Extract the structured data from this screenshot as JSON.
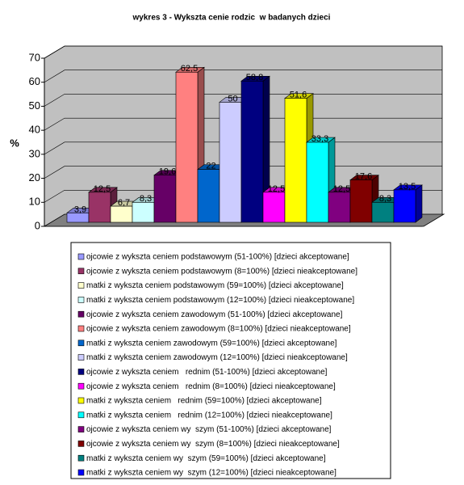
{
  "chart_data": {
    "type": "bar3d",
    "title": "wykres 3 - Wykszta cenie rodzic  w badanych dzieci",
    "y_label": "%",
    "ylim": [
      0,
      70
    ],
    "yticks": [
      0,
      10,
      20,
      30,
      40,
      50,
      60,
      70
    ],
    "grid": true,
    "series": [
      {
        "name": "ojcowie z wykszta ceniem podstawowym (51-100%) [dzieci akceptowane]",
        "color": "#9999ff",
        "values": [
          3.9
        ],
        "value_labels": [
          "3,9"
        ]
      },
      {
        "name": "ojcowie z wykszta ceniem podstawowym (8=100%) [dzieci nieakceptowane]",
        "color": "#993366",
        "values": [
          12.5
        ],
        "value_labels": [
          "12,5"
        ]
      },
      {
        "name": "matki z wykszta ceniem podstawowym (59=100%) [dzieci akceptowane]",
        "color": "#ffffcc",
        "values": [
          6.7
        ],
        "value_labels": [
          "6,7"
        ]
      },
      {
        "name": "matki z wykszta ceniem podstawowym (12=100%) [dzieci nieakceptowane]",
        "color": "#ccffff",
        "values": [
          8.3
        ],
        "value_labels": [
          "8,3"
        ]
      },
      {
        "name": "ojcowie z wykszta ceniem zawodowym (51-100%) [dzieci akceptowane]",
        "color": "#660066",
        "values": [
          19.6
        ],
        "value_labels": [
          "19,6"
        ]
      },
      {
        "name": "ojcowie z wykszta ceniem zawodowym (8=100%) [dzieci nieakceptowane]",
        "color": "#ff8080",
        "values": [
          62.5
        ],
        "value_labels": [
          "62,5"
        ]
      },
      {
        "name": "matki z wykszta ceniem zawodowym (59=100%) [dzieci akceptowane]",
        "color": "#0066cc",
        "values": [
          22
        ]
      },
      {
        "name": "matki z wykszta ceniem zawodowym (12=100%) [dzieci nieakceptowane]",
        "color": "#ccccff",
        "values": [
          50
        ]
      },
      {
        "name": "ojcowie z wykszta ceniem   rednim (51-100%) [dzieci akceptowane]",
        "color": "#000080",
        "values": [
          58.8
        ],
        "value_labels": [
          "58,8"
        ]
      },
      {
        "name": "ojcowie z wykszta ceniem   rednim (8=100%) [dzieci nieakceptowane]",
        "color": "#ff00ff",
        "values": [
          12.5
        ],
        "value_labels": [
          "12,5"
        ]
      },
      {
        "name": "matki z wykszta ceniem   rednim (59=100%) [dzieci akceptowane]",
        "color": "#ffff00",
        "values": [
          51.6
        ],
        "value_labels": [
          "51,6"
        ]
      },
      {
        "name": "matki z wykszta ceniem   rednim (12=100%) [dzieci nieakceptowane]",
        "color": "#00ffff",
        "values": [
          33.3
        ],
        "value_labels": [
          "33,3"
        ]
      },
      {
        "name": "ojcowie z wykszta ceniem wy  szym (51-100%) [dzieci akceptowane]",
        "color": "#800080",
        "values": [
          12.5
        ],
        "value_labels": [
          "12,5"
        ]
      },
      {
        "name": "ojcowie z wykszta ceniem wy  szym (8=100%) [dzieci nieakceptowane]",
        "color": "#800000",
        "values": [
          17.6
        ],
        "value_labels": [
          "17,6"
        ]
      },
      {
        "name": "matki z wykszta ceniem wy  szym (59=100%) [dzieci akceptowane]",
        "color": "#008080",
        "values": [
          8.3
        ],
        "value_labels": [
          "8,3"
        ]
      },
      {
        "name": "matki z wykszta ceniem wy  szym (12=100%) [dzieci nieakceptowane]",
        "color": "#0000ff",
        "values": [
          13.5
        ],
        "value_labels": [
          "13,5"
        ]
      }
    ]
  }
}
